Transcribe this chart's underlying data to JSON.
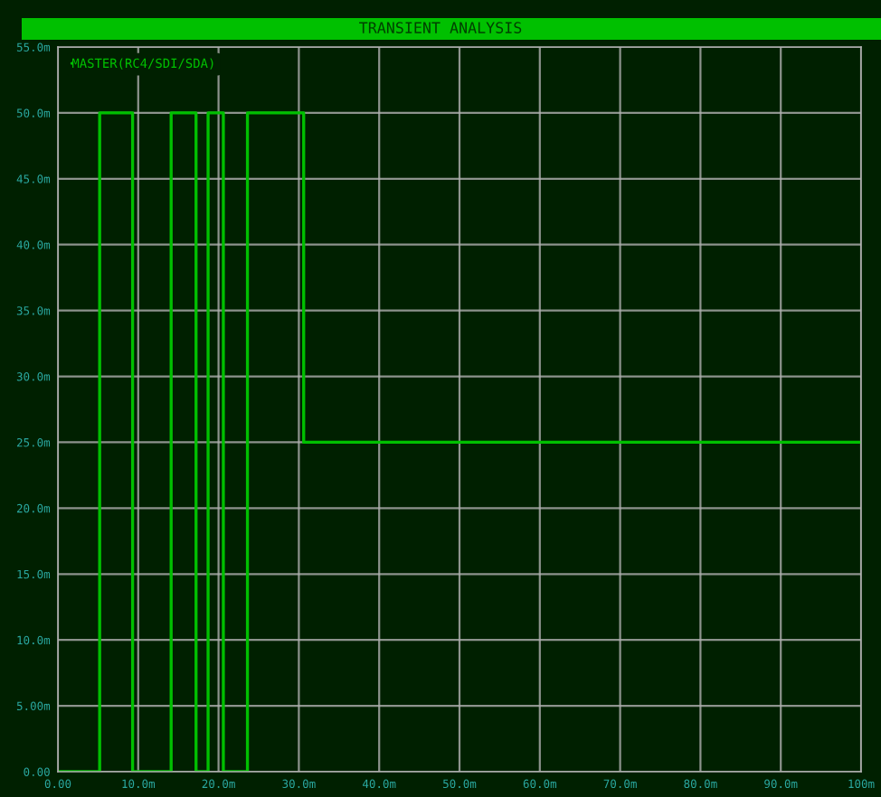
{
  "chart_data": {
    "type": "step",
    "title": "TRANSIENT ANALYSIS",
    "x": [
      0,
      5.2,
      9.3,
      14.1,
      17.2,
      18.7,
      20.6,
      23.6,
      30.6,
      100
    ],
    "series": [
      {
        "name": "MASTER(RC4/SDI/SDA)",
        "color": "#00c000",
        "values": [
          0,
          50,
          0,
          50,
          0,
          50,
          0,
          50,
          25,
          25
        ]
      }
    ],
    "xlim": [
      0,
      100
    ],
    "xticks": [
      "0.00",
      {
        "value": 10,
        "label": "10.0m"
      },
      {
        "value": 20,
        "label": "20.0m"
      },
      {
        "value": 30,
        "label": "30.0m"
      },
      {
        "value": 40,
        "label": "40.0m"
      },
      {
        "value": 50,
        "label": "50.0m"
      },
      {
        "value": 60,
        "label": "60.0m"
      },
      {
        "value": 70,
        "label": "70.0m"
      },
      {
        "value": 80,
        "label": "80.0m"
      },
      {
        "value": 90,
        "label": "90.0m"
      },
      {
        "value": 100,
        "label": "100m"
      }
    ],
    "ylim": [
      0,
      55
    ],
    "yticks": [
      "0.00",
      {
        "value": 5,
        "label": "5.00m"
      },
      {
        "value": 10,
        "label": "10.0m"
      },
      {
        "value": 15,
        "label": "15.0m"
      },
      {
        "value": 20,
        "label": "20.0m"
      },
      {
        "value": 25,
        "label": "25.0m"
      },
      {
        "value": 30,
        "label": "30.0m"
      },
      {
        "value": 35,
        "label": "35.0m"
      },
      {
        "value": 40,
        "label": "40.0m"
      },
      {
        "value": 45,
        "label": "45.0m"
      },
      {
        "value": 50,
        "label": "50.0m"
      },
      {
        "value": 55,
        "label": "55.0m"
      }
    ],
    "grid": true,
    "legend": "top left",
    "line_style": "solid",
    "marker": "none"
  }
}
